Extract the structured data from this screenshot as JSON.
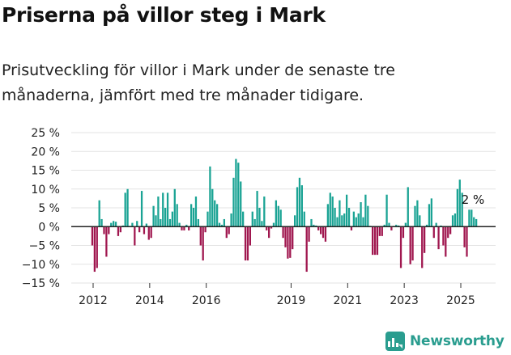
{
  "title": "Priserna på villor steg i Mark",
  "subtitle": "Prisutveckling för villor i Mark under de senaste tre månaderna, jämfört med tre månader tidigare.",
  "brand": "Newsworthy",
  "colors": {
    "positive": "#1aa394",
    "negative": "#a0174f",
    "brand": "#2a9d8f"
  },
  "chart_data": {
    "type": "bar",
    "ylim": [
      -15,
      25
    ],
    "y_ticks": [
      "25 %",
      "20 %",
      "15 %",
      "10 %",
      "5 %",
      "0 %",
      "−5 %",
      "−10 %",
      "−15 %"
    ],
    "y_tick_values": [
      25,
      20,
      15,
      10,
      5,
      0,
      -5,
      -10,
      -15
    ],
    "x_tick_labels": [
      "2012",
      "2014",
      "2016",
      "2019",
      "2021",
      "2023",
      "2025"
    ],
    "x_tick_values": [
      2012,
      2014,
      2016,
      2019,
      2021,
      2023,
      2025
    ],
    "x_start": 2011.97,
    "x_step": 0.0833,
    "values": [
      -5,
      -12,
      -11,
      7,
      2,
      -2,
      -8,
      -2,
      1,
      1.5,
      1.3,
      -2.5,
      -1.5,
      0.3,
      9,
      10,
      0.2,
      1,
      -5,
      1.5,
      -1.5,
      9.5,
      -2,
      0.8,
      -3.5,
      -3,
      5.5,
      3,
      8,
      2,
      9,
      5,
      9,
      2,
      4,
      10,
      6,
      1,
      -1,
      -1,
      0.5,
      -1,
      6,
      5,
      8,
      2,
      -5,
      -9,
      -1.5,
      4,
      16,
      10,
      7,
      6,
      1,
      0.5,
      2,
      -3,
      -2,
      3.5,
      13,
      18,
      17,
      12,
      4,
      -9,
      -9,
      -5,
      4,
      2,
      9.5,
      5,
      1.5,
      8,
      -1,
      -3,
      -0.5,
      1,
      7,
      5.5,
      4.5,
      -3,
      -5.5,
      -8.5,
      -8.3,
      -6,
      3,
      10.5,
      13,
      11,
      4,
      -12,
      -4,
      2,
      0.5,
      0.3,
      -1,
      -2,
      -3,
      -4,
      6,
      9,
      8,
      5,
      2.5,
      7,
      3,
      3.5,
      8.5,
      5,
      -1,
      4,
      2.5,
      3.5,
      6.5,
      2.5,
      8.5,
      5.5,
      0.2,
      -7.5,
      -7.5,
      -7.5,
      -2.5,
      -2.5,
      0.5,
      8.5,
      1,
      -1,
      0.2,
      0.5,
      0.3,
      -11,
      -3,
      1,
      10.5,
      -10,
      -9,
      5.5,
      7,
      3,
      -11,
      -7,
      0.5,
      6,
      7.5,
      -3,
      1,
      -6,
      0.3,
      -5,
      -8,
      -3,
      -2,
      3,
      3.5,
      10,
      12.5,
      9,
      -5.5,
      -8,
      4.5,
      4.5,
      2.5,
      2
    ],
    "annotation": "2 %"
  }
}
